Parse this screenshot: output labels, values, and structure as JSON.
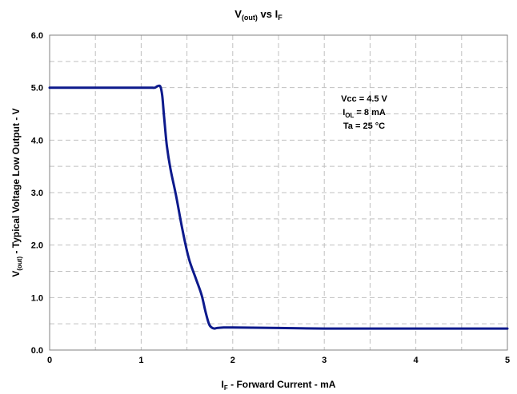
{
  "chart_data": {
    "type": "line",
    "title": {
      "main": "V",
      "sub1": "(out)",
      "mid": " vs I",
      "sub2": "F"
    },
    "xlabel": {
      "pre": "I",
      "sub": "F",
      "post": " - Forward Current - mA"
    },
    "ylabel": {
      "pre": "V",
      "sub": "(out)",
      "post": " - Typical Voltage Low Output - V"
    },
    "xlim": [
      0,
      5
    ],
    "ylim": [
      0,
      6
    ],
    "x_ticks": [
      0,
      1,
      2,
      3,
      4,
      5
    ],
    "x_tick_labels": [
      "0",
      "1",
      "2",
      "3",
      "4",
      "5"
    ],
    "y_ticks": [
      0,
      1,
      2,
      3,
      4,
      5,
      6
    ],
    "y_tick_labels": [
      "0.0",
      "1.0",
      "2.0",
      "3.0",
      "4.0",
      "5.0",
      "6.0"
    ],
    "x_minor_grid": [
      0.5,
      1.5,
      2.5,
      3.5,
      4.5
    ],
    "y_minor_grid": [
      0.5,
      1.5,
      2.5,
      3.5,
      4.5,
      5.5
    ],
    "grid": true,
    "legend": "none",
    "annotations": [
      {
        "pre": "Vcc = 4.5 V",
        "sub": "",
        "post": ""
      },
      {
        "pre": "I",
        "sub": "OL",
        "post": " = 8 mA"
      },
      {
        "pre": "Ta = 25 °C",
        "sub": "",
        "post": ""
      }
    ],
    "annotation_position": "top-right",
    "series": [
      {
        "color": "#0d1a8c",
        "x": [
          0,
          0.5,
          1.0,
          1.1,
          1.15,
          1.18,
          1.21,
          1.23,
          1.25,
          1.28,
          1.32,
          1.38,
          1.45,
          1.52,
          1.6,
          1.66,
          1.7,
          1.74,
          1.77,
          1.8,
          1.83,
          1.9,
          2.0,
          2.5,
          3.0,
          4.0,
          5.0
        ],
        "y": [
          5.0,
          5.0,
          5.0,
          5.0,
          5.0,
          5.03,
          5.02,
          4.85,
          4.45,
          3.9,
          3.45,
          2.95,
          2.3,
          1.75,
          1.35,
          1.05,
          0.75,
          0.5,
          0.43,
          0.41,
          0.42,
          0.43,
          0.43,
          0.42,
          0.41,
          0.41,
          0.41
        ]
      }
    ]
  }
}
